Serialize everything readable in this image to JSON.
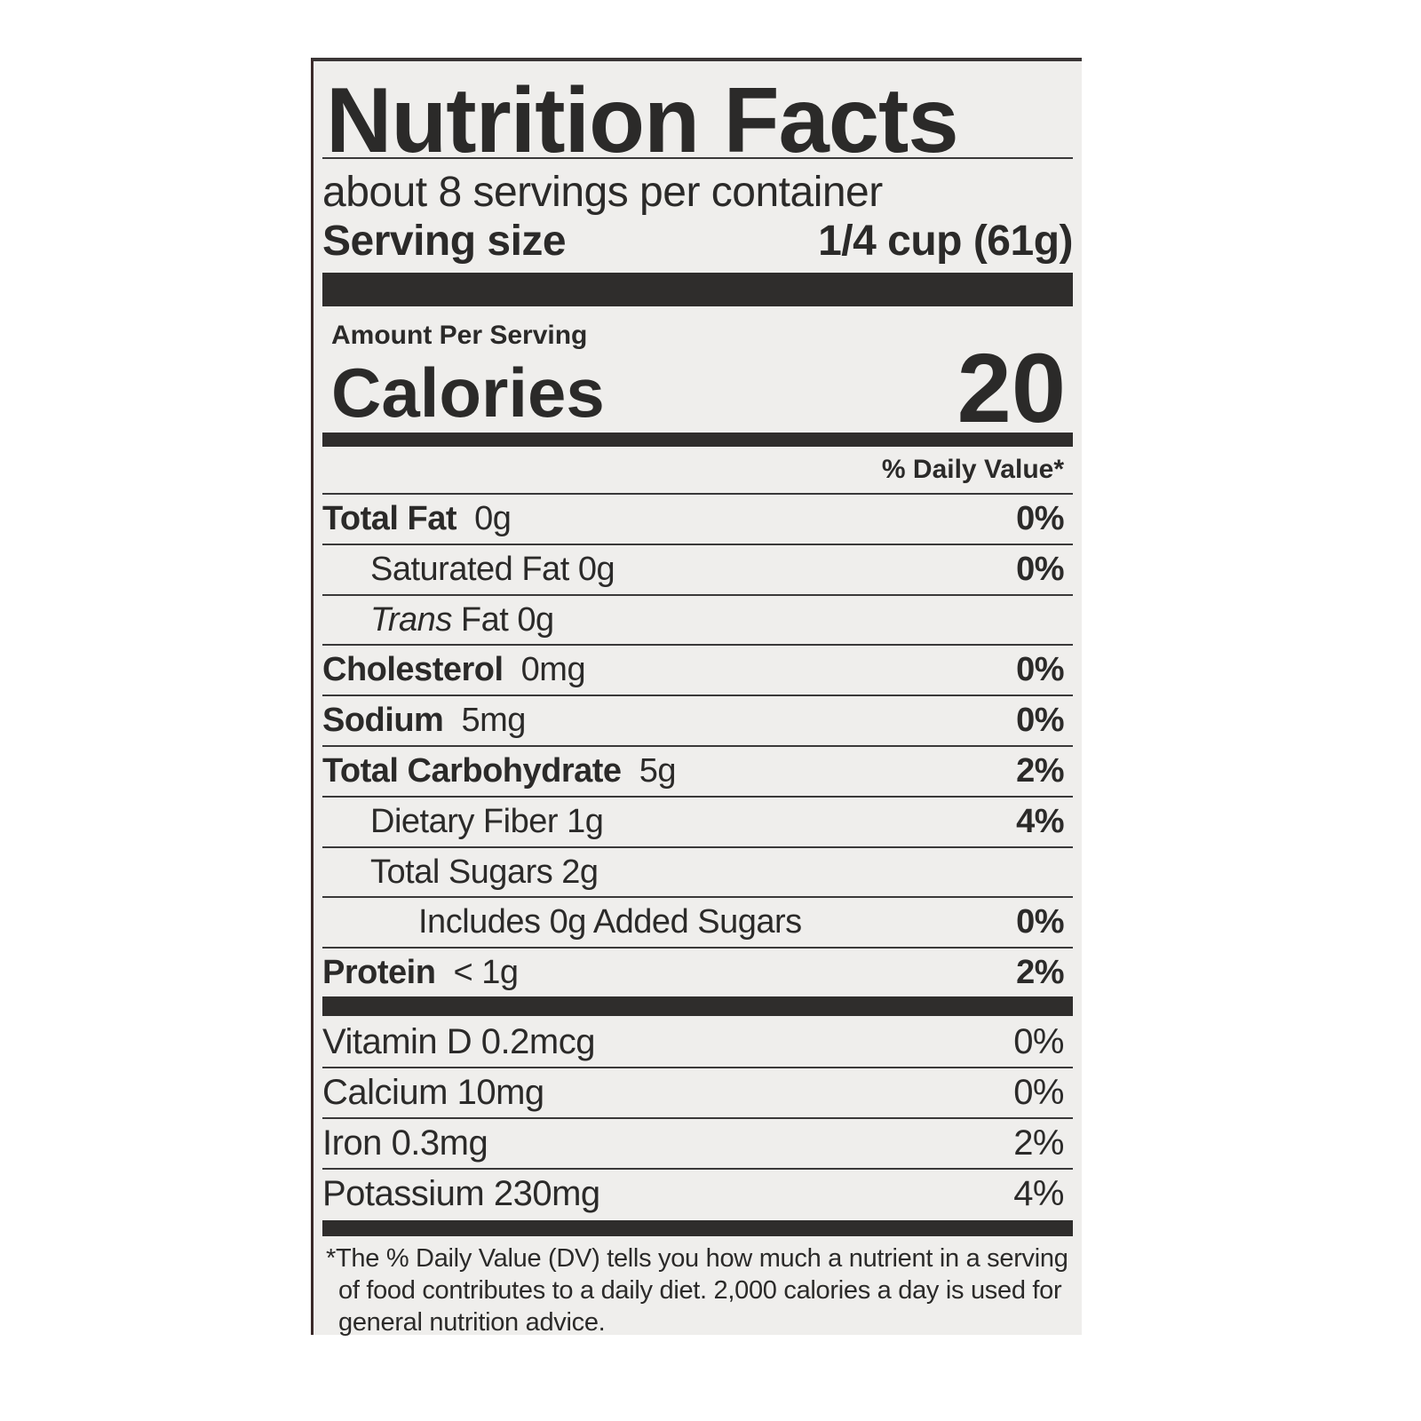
{
  "title": "Nutrition Facts",
  "servings_per_container": "about 8 servings per container",
  "serving_size": {
    "label": "Serving size",
    "value": "1/4 cup (61g)"
  },
  "amount_per_serving": "Amount Per Serving",
  "calories": {
    "label": "Calories",
    "value": "20"
  },
  "daily_value_header": "% Daily Value*",
  "nutrients": [
    {
      "name": "Total Fat",
      "amount": "0g",
      "dv": "0%",
      "bold": true,
      "indent": 0
    },
    {
      "name": "Saturated Fat",
      "amount": "0g",
      "dv": "0%",
      "bold": false,
      "indent": 1
    },
    {
      "name": "Trans",
      "name_suffix": "Fat",
      "amount": "0g",
      "dv": "",
      "bold": false,
      "indent": 1,
      "italic": true
    },
    {
      "name": "Cholesterol",
      "amount": "0mg",
      "dv": "0%",
      "bold": true,
      "indent": 0
    },
    {
      "name": "Sodium",
      "amount": "5mg",
      "dv": "0%",
      "bold": true,
      "indent": 0
    },
    {
      "name": "Total Carbohydrate",
      "amount": "5g",
      "dv": "2%",
      "bold": true,
      "indent": 0
    },
    {
      "name": "Dietary Fiber",
      "amount": "1g",
      "dv": "4%",
      "bold": false,
      "indent": 1
    },
    {
      "name": "Total Sugars",
      "amount": "2g",
      "dv": "",
      "bold": false,
      "indent": 1
    },
    {
      "name": "Includes 0g Added Sugars",
      "amount": "",
      "dv": "0%",
      "bold": false,
      "indent": 2
    },
    {
      "name": "Protein",
      "amount": "< 1g",
      "dv": "2%",
      "bold": true,
      "indent": 0
    }
  ],
  "vitamins": [
    {
      "name": "Vitamin D",
      "amount": "0.2mcg",
      "dv": "0%"
    },
    {
      "name": "Calcium",
      "amount": "10mg",
      "dv": "0%"
    },
    {
      "name": "Iron",
      "amount": "0.3mg",
      "dv": "2%"
    },
    {
      "name": "Potassium",
      "amount": "230mg",
      "dv": "4%"
    }
  ],
  "footnote": "*The % Daily Value (DV) tells you how much a nutrient in a serving of food contributes to a daily diet. 2,000 calories a day is used for general nutrition advice."
}
